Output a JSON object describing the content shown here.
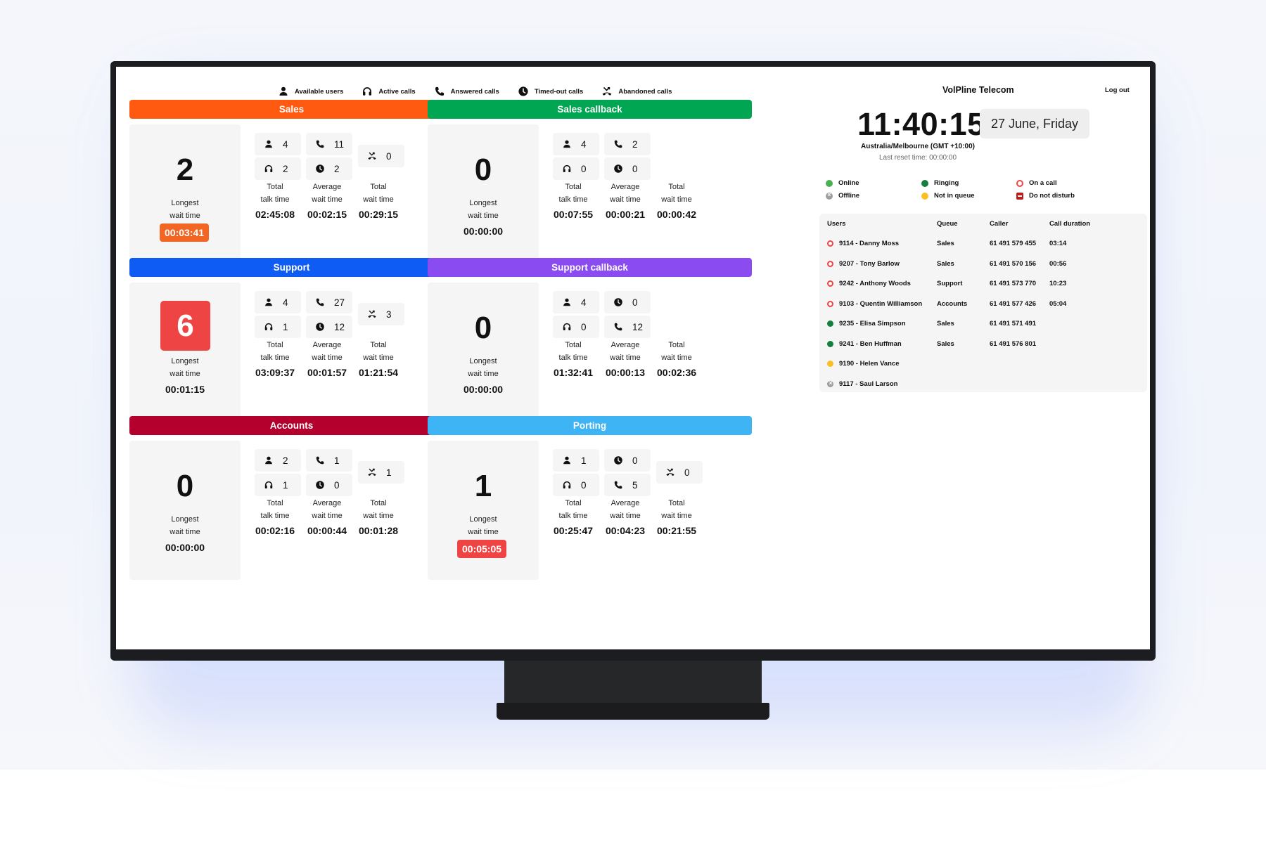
{
  "legend": [
    {
      "icon": "person-icon",
      "label": "Available users"
    },
    {
      "icon": "headset-icon",
      "label": "Active calls"
    },
    {
      "icon": "phone-icon",
      "label": "Answered calls"
    },
    {
      "icon": "clock-icon",
      "label": "Timed-out calls"
    },
    {
      "icon": "missed-call-icon",
      "label": "Abandoned calls"
    }
  ],
  "brand": "VolPline Telecom",
  "logout": "Log out",
  "clock": {
    "time": "11:40:15",
    "date": "27 June, Friday",
    "timezone": "Australia/Melbourne (GMT +10:00)",
    "reset": "Last reset time: 00:00:00"
  },
  "common": {
    "longest_wait": "Longest\nwait time",
    "total_talk": "Total\ntalk time",
    "average_wait": "Average\nwait time",
    "total_wait": "Total\nwait time"
  },
  "queues": [
    {
      "name": "Sales",
      "color": "#ff5a0f",
      "big": "2",
      "longest_wait": "00:03:41",
      "longest_style": "orange",
      "chips": [
        {
          "icon": "person-icon",
          "value": "4"
        },
        {
          "icon": "headset-icon",
          "value": "2"
        },
        {
          "icon": "phone-icon",
          "value": "11"
        },
        {
          "icon": "clock-icon",
          "value": "2"
        },
        {
          "icon": "missed-call-icon",
          "value": "0"
        }
      ],
      "total_talk": "02:45:08",
      "average_wait": "00:02:15",
      "total_wait": "00:29:15"
    },
    {
      "name": "Sales callback",
      "color": "#00a651",
      "big": "0",
      "longest_wait": "00:00:00",
      "longest_style": "plain",
      "chips": [
        {
          "icon": "person-icon",
          "value": "4"
        },
        {
          "icon": "headset-icon",
          "value": "0"
        },
        {
          "icon": "phone-icon",
          "value": "2"
        },
        {
          "icon": "clock-icon",
          "value": "0"
        }
      ],
      "total_talk": "00:07:55",
      "average_wait": "00:00:21",
      "total_wait": "00:00:42"
    },
    {
      "name": "Support",
      "color": "#0f5cf5",
      "big": "6",
      "big_style": "red",
      "longest_wait": "00:01:15",
      "longest_style": "plain",
      "chips": [
        {
          "icon": "person-icon",
          "value": "4"
        },
        {
          "icon": "headset-icon",
          "value": "1"
        },
        {
          "icon": "phone-icon",
          "value": "27"
        },
        {
          "icon": "clock-icon",
          "value": "12"
        },
        {
          "icon": "missed-call-icon",
          "value": "3"
        }
      ],
      "total_talk": "03:09:37",
      "average_wait": "00:01:57",
      "total_wait": "01:21:54"
    },
    {
      "name": "Support callback",
      "color": "#8a4bf0",
      "big": "0",
      "longest_wait": "00:00:00",
      "longest_style": "plain",
      "chips": [
        {
          "icon": "person-icon",
          "value": "4"
        },
        {
          "icon": "headset-icon",
          "value": "0"
        },
        {
          "icon": "clock-icon",
          "value": "0"
        },
        {
          "icon": "phone-icon",
          "value": "12"
        }
      ],
      "total_talk": "01:32:41",
      "average_wait": "00:00:13",
      "total_wait": "00:02:36"
    },
    {
      "name": "Accounts",
      "color": "#b3002d",
      "big": "0",
      "longest_wait": "00:00:00",
      "longest_style": "plain",
      "chips": [
        {
          "icon": "person-icon",
          "value": "2"
        },
        {
          "icon": "headset-icon",
          "value": "1"
        },
        {
          "icon": "phone-icon",
          "value": "1"
        },
        {
          "icon": "clock-icon",
          "value": "0"
        },
        {
          "icon": "missed-call-icon",
          "value": "1"
        }
      ],
      "total_talk": "00:02:16",
      "average_wait": "00:00:44",
      "total_wait": "00:01:28"
    },
    {
      "name": "Porting",
      "color": "#3fb4f5",
      "big": "1",
      "longest_wait": "00:05:05",
      "longest_style": "red",
      "chips": [
        {
          "icon": "person-icon",
          "value": "1"
        },
        {
          "icon": "headset-icon",
          "value": "0"
        },
        {
          "icon": "clock-icon",
          "value": "0"
        },
        {
          "icon": "phone-icon",
          "value": "5"
        },
        {
          "icon": "missed-call-icon",
          "value": "0"
        }
      ],
      "total_talk": "00:25:47",
      "average_wait": "00:04:23",
      "total_wait": "00:21:55"
    }
  ],
  "status_legend": [
    {
      "key": "green",
      "label": "Online"
    },
    {
      "key": "dkgreen",
      "label": "Ringing"
    },
    {
      "key": "ring",
      "label": "On a call"
    },
    {
      "key": "offline",
      "label": "Offline"
    },
    {
      "key": "amber",
      "label": "Not in queue"
    },
    {
      "key": "dnd",
      "label": "Do not disturb"
    }
  ],
  "table": {
    "headers": [
      "Users",
      "Queue",
      "Caller",
      "Call duration"
    ],
    "rows": [
      {
        "status": "ring",
        "user": "9114 - Danny Moss",
        "queue": "Sales",
        "caller": "61 491 579 455",
        "duration": "03:14"
      },
      {
        "status": "ring",
        "user": "9207 - Tony Barlow",
        "queue": "Sales",
        "caller": "61 491 570 156",
        "duration": "00:56"
      },
      {
        "status": "ring",
        "user": "9242 - Anthony Woods",
        "queue": "Support",
        "caller": "61 491 573 770",
        "duration": "10:23"
      },
      {
        "status": "ring",
        "user": "9103 - Quentin Williamson",
        "queue": "Accounts",
        "caller": "61 491 577 426",
        "duration": "05:04"
      },
      {
        "status": "dkgreen",
        "user": "9235 - Elisa Simpson",
        "queue": "Sales",
        "caller": "61 491 571 491",
        "duration": ""
      },
      {
        "status": "dkgreen",
        "user": "9241 - Ben Huffman",
        "queue": "Sales",
        "caller": "61 491 576 801",
        "duration": ""
      },
      {
        "status": "amber",
        "user": "9190 - Helen Vance",
        "queue": "",
        "caller": "",
        "duration": ""
      },
      {
        "status": "offline",
        "user": "9117 - Saul Larson",
        "queue": "",
        "caller": "",
        "duration": ""
      }
    ]
  }
}
